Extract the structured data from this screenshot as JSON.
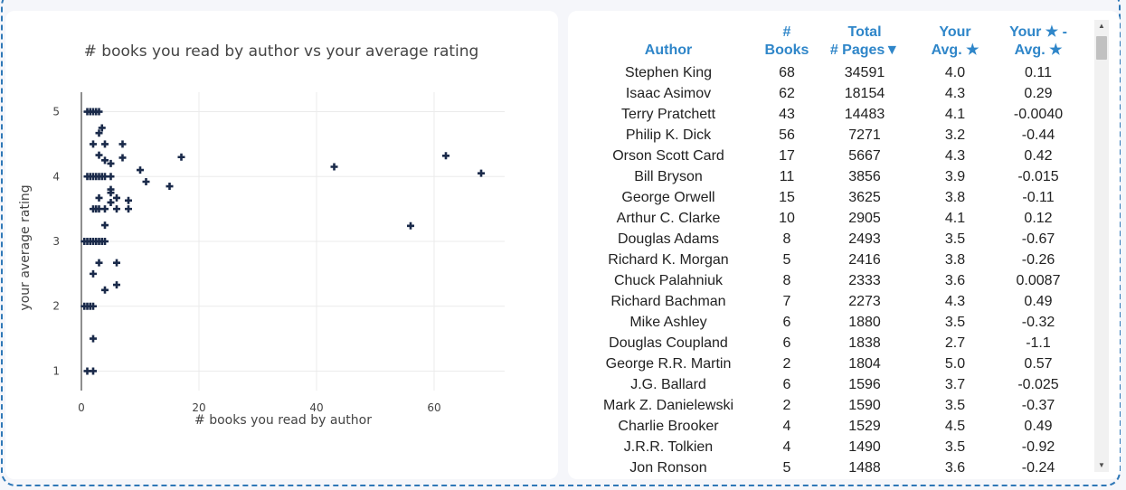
{
  "chart_data": {
    "type": "scatter",
    "title": "# books you read by author vs your average rating",
    "xlabel": "# books you read by author",
    "ylabel": "your average rating",
    "xlim": [
      0,
      72
    ],
    "ylim": [
      0.7,
      5.3
    ],
    "xticks": [
      0,
      20,
      40,
      60
    ],
    "yticks": [
      1,
      2,
      3,
      4,
      5
    ],
    "grid": true,
    "marker_color": "#1a2a4a",
    "points": [
      [
        1,
        5
      ],
      [
        1.5,
        5
      ],
      [
        2,
        5
      ],
      [
        2.5,
        5
      ],
      [
        3,
        5
      ],
      [
        3.5,
        4.75
      ],
      [
        3,
        4.67
      ],
      [
        2,
        4.5
      ],
      [
        4,
        4.5
      ],
      [
        7,
        4.5
      ],
      [
        4,
        4.25
      ],
      [
        3,
        4.33
      ],
      [
        5,
        4.2
      ],
      [
        7,
        4.29
      ],
      [
        17,
        4.3
      ],
      [
        10,
        4.1
      ],
      [
        1,
        4
      ],
      [
        1.5,
        4
      ],
      [
        2,
        4
      ],
      [
        2.5,
        4
      ],
      [
        3,
        4
      ],
      [
        3.5,
        4
      ],
      [
        4,
        4
      ],
      [
        5,
        4
      ],
      [
        43,
        4.15
      ],
      [
        62,
        4.32
      ],
      [
        68,
        4.05
      ],
      [
        11,
        3.92
      ],
      [
        15,
        3.85
      ],
      [
        5,
        3.8
      ],
      [
        5,
        3.75
      ],
      [
        3,
        3.67
      ],
      [
        5,
        3.6
      ],
      [
        6,
        3.67
      ],
      [
        8,
        3.63
      ],
      [
        8,
        3.5
      ],
      [
        6,
        3.5
      ],
      [
        2,
        3.5
      ],
      [
        2.5,
        3.5
      ],
      [
        3,
        3.5
      ],
      [
        4,
        3.5
      ],
      [
        4,
        3.25
      ],
      [
        56,
        3.24
      ],
      [
        0.5,
        3
      ],
      [
        1,
        3
      ],
      [
        1.5,
        3
      ],
      [
        2,
        3
      ],
      [
        2.5,
        3
      ],
      [
        3,
        3
      ],
      [
        3.5,
        3
      ],
      [
        4,
        3
      ],
      [
        6,
        2.67
      ],
      [
        3,
        2.67
      ],
      [
        2,
        2.5
      ],
      [
        6,
        2.33
      ],
      [
        4,
        2.25
      ],
      [
        0.5,
        2
      ],
      [
        1,
        2
      ],
      [
        1.5,
        2
      ],
      [
        2,
        2
      ],
      [
        2,
        1.5
      ],
      [
        1,
        1
      ],
      [
        2,
        1
      ]
    ]
  },
  "table": {
    "headers": [
      {
        "line1": "",
        "line2": "Author"
      },
      {
        "line1": "#",
        "line2": "Books"
      },
      {
        "line1": "Total",
        "line2": "# Pages▼"
      },
      {
        "line1": "Your",
        "line2": "Avg. ★"
      },
      {
        "line1": "Your ★ -",
        "line2": "Avg. ★"
      }
    ],
    "rows": [
      [
        "Stephen King",
        "68",
        "34591",
        "4.0",
        "0.11"
      ],
      [
        "Isaac Asimov",
        "62",
        "18154",
        "4.3",
        "0.29"
      ],
      [
        "Terry Pratchett",
        "43",
        "14483",
        "4.1",
        "-0.0040"
      ],
      [
        "Philip K. Dick",
        "56",
        "7271",
        "3.2",
        "-0.44"
      ],
      [
        "Orson Scott Card",
        "17",
        "5667",
        "4.3",
        "0.42"
      ],
      [
        "Bill Bryson",
        "11",
        "3856",
        "3.9",
        "-0.015"
      ],
      [
        "George Orwell",
        "15",
        "3625",
        "3.8",
        "-0.11"
      ],
      [
        "Arthur C. Clarke",
        "10",
        "2905",
        "4.1",
        "0.12"
      ],
      [
        "Douglas Adams",
        "8",
        "2493",
        "3.5",
        "-0.67"
      ],
      [
        "Richard K. Morgan",
        "5",
        "2416",
        "3.8",
        "-0.26"
      ],
      [
        "Chuck Palahniuk",
        "8",
        "2333",
        "3.6",
        "0.0087"
      ],
      [
        "Richard Bachman",
        "7",
        "2273",
        "4.3",
        "0.49"
      ],
      [
        "Mike Ashley",
        "6",
        "1880",
        "3.5",
        "-0.32"
      ],
      [
        "Douglas Coupland",
        "6",
        "1838",
        "2.7",
        "-1.1"
      ],
      [
        "George R.R. Martin",
        "2",
        "1804",
        "5.0",
        "0.57"
      ],
      [
        "J.G. Ballard",
        "6",
        "1596",
        "3.7",
        "-0.025"
      ],
      [
        "Mark Z. Danielewski",
        "2",
        "1590",
        "3.5",
        "-0.37"
      ],
      [
        "Charlie Brooker",
        "4",
        "1529",
        "4.5",
        "0.49"
      ],
      [
        "J.R.R. Tolkien",
        "4",
        "1490",
        "3.5",
        "-0.92"
      ],
      [
        "Jon Ronson",
        "5",
        "1488",
        "3.6",
        "-0.24"
      ]
    ]
  },
  "scrollbar": {
    "up": "▲",
    "down": "▼"
  }
}
